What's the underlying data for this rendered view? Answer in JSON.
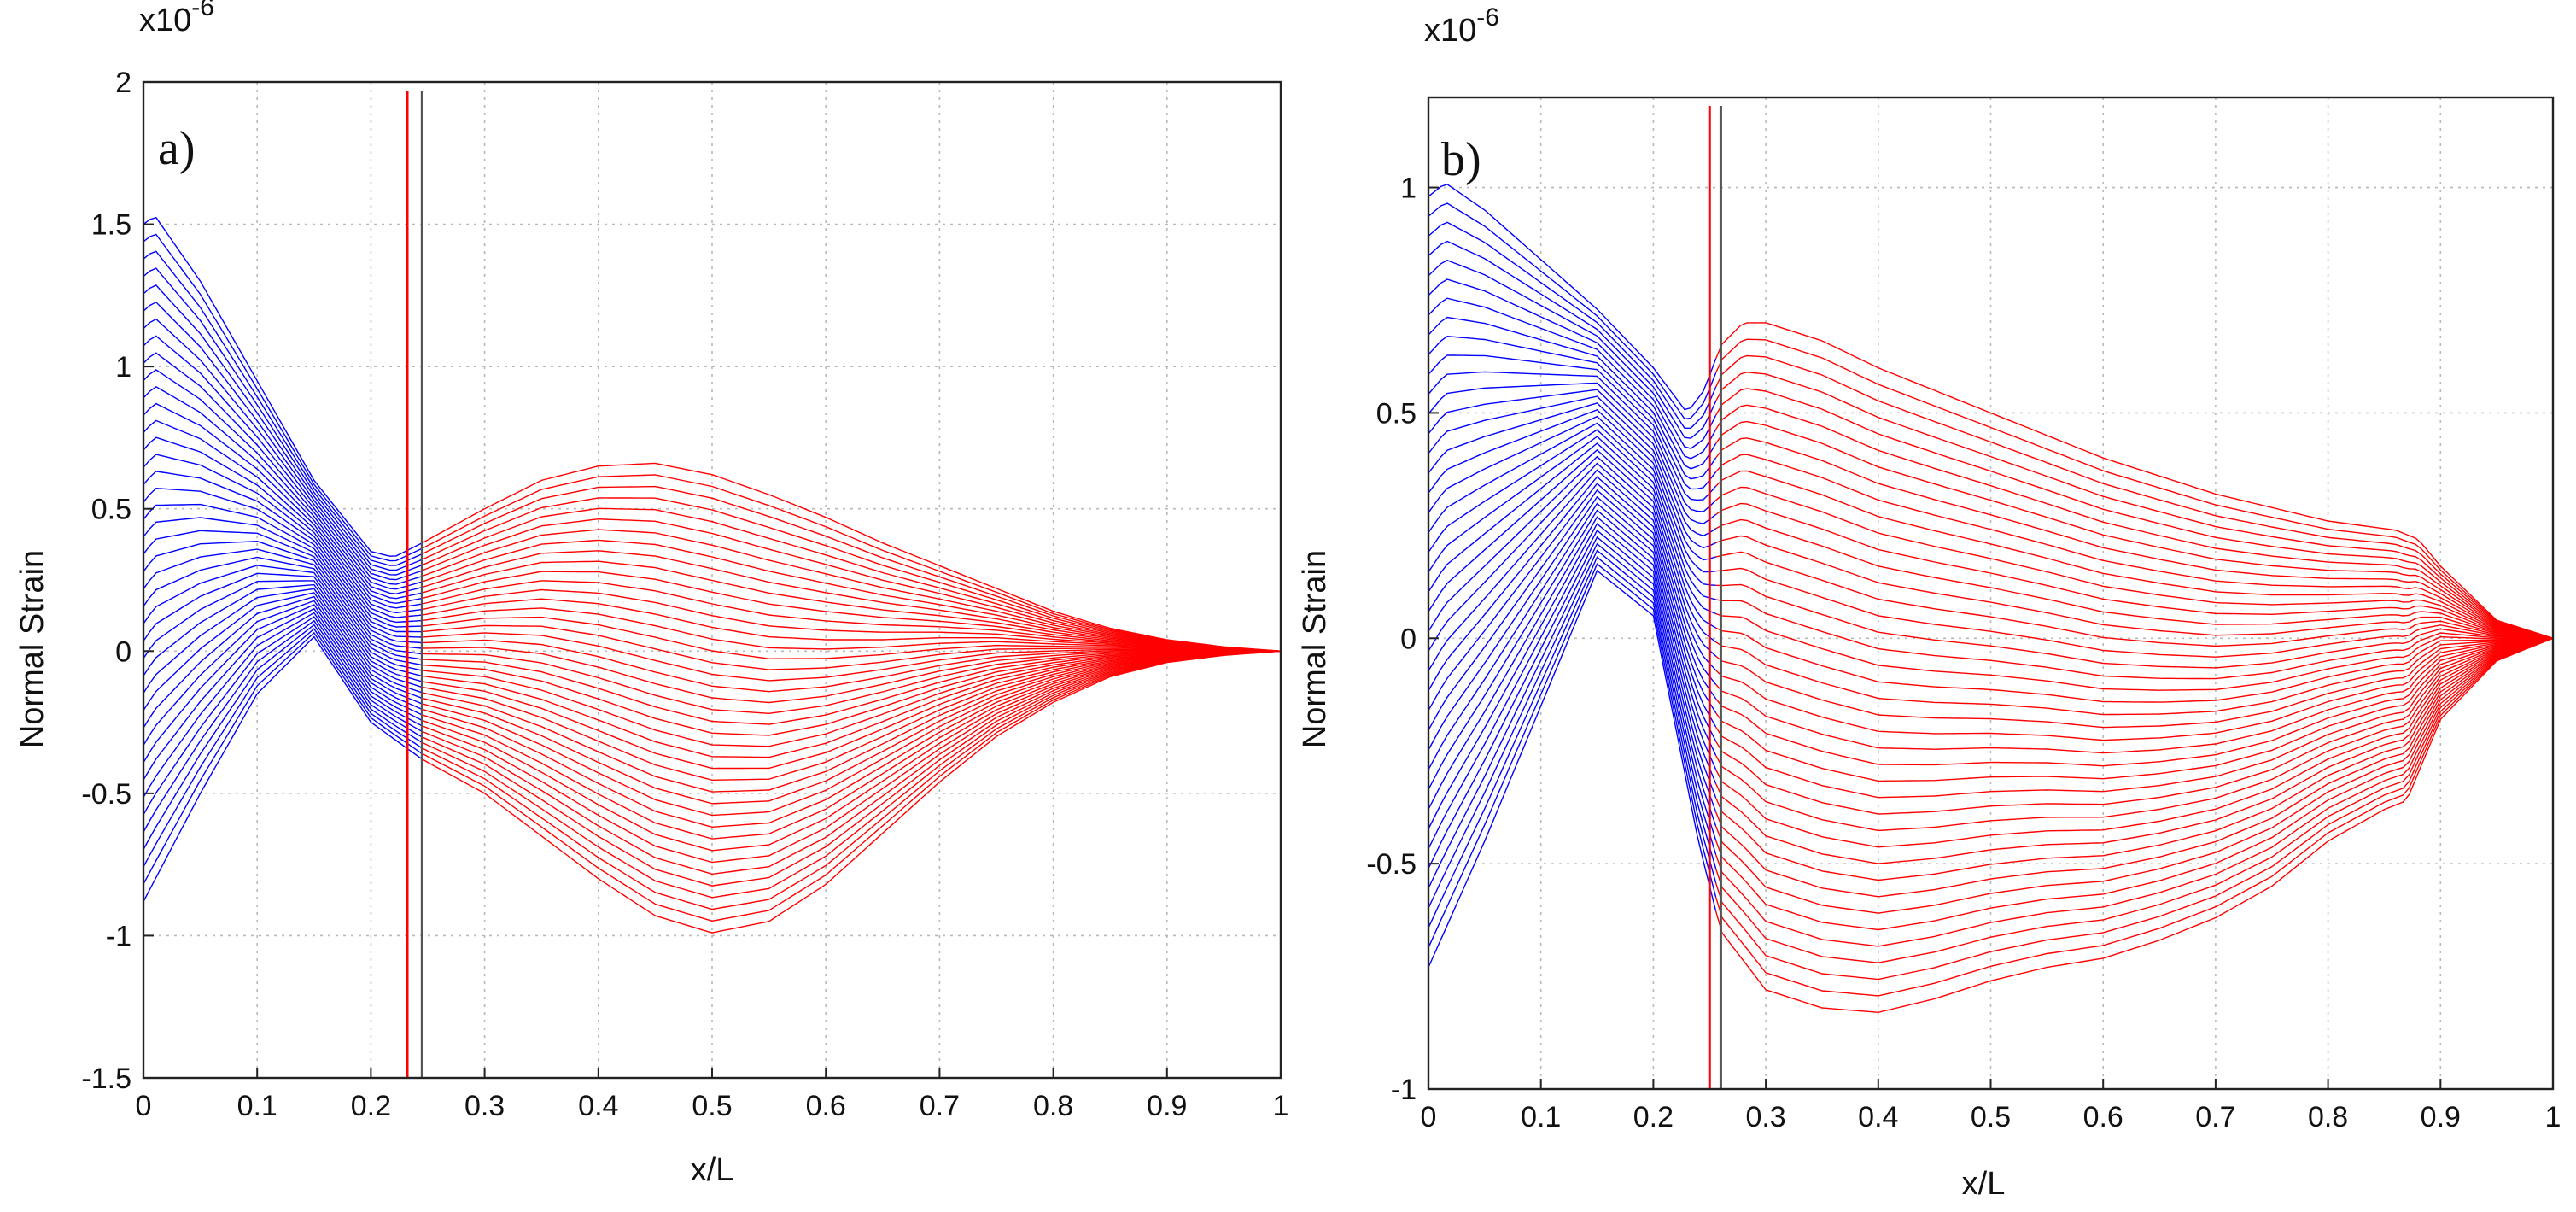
{
  "chart_data": [
    {
      "type": "line",
      "panel_label": "a)",
      "xlabel": "x/L",
      "ylabel": "Normal Strain",
      "y_multiplier": "x10",
      "y_multiplier_exp": "-6",
      "xlim": [
        0,
        1
      ],
      "ylim": [
        -1.5,
        2
      ],
      "x_ticks": [
        "0",
        "0.1",
        "0.2",
        "0.3",
        "0.4",
        "0.5",
        "0.6",
        "0.7",
        "0.8",
        "0.9",
        "1"
      ],
      "y_ticks": [
        "-1.5",
        "-1",
        "-0.5",
        "0",
        "0.5",
        "1",
        "1.5",
        "2"
      ],
      "x_tick_values": [
        0,
        0.1,
        0.2,
        0.3,
        0.4,
        0.5,
        0.6,
        0.7,
        0.8,
        0.9,
        1
      ],
      "y_tick_values": [
        -1.5,
        -1,
        -0.5,
        0,
        0.5,
        1,
        1.5,
        2
      ],
      "grid": true,
      "family": {
        "count": 40,
        "split_x": 0.245,
        "colors": {
          "left": "#0000ff",
          "right": "#ff0000"
        },
        "envelope_upper": {
          "x": [
            0,
            0.01,
            0.05,
            0.1,
            0.15,
            0.2,
            0.22,
            0.245,
            0.3,
            0.35,
            0.4,
            0.45,
            0.5,
            0.55,
            0.6,
            0.65,
            0.7,
            0.75,
            0.8,
            0.85,
            0.9,
            0.95,
            1
          ],
          "y": [
            1.5,
            1.53,
            1.3,
            0.95,
            0.6,
            0.35,
            0.33,
            0.38,
            0.5,
            0.6,
            0.65,
            0.66,
            0.62,
            0.55,
            0.47,
            0.38,
            0.3,
            0.22,
            0.14,
            0.08,
            0.04,
            0.015,
            0
          ]
        },
        "envelope_lower": {
          "x": [
            0,
            0.05,
            0.1,
            0.15,
            0.2,
            0.245,
            0.3,
            0.35,
            0.4,
            0.45,
            0.5,
            0.55,
            0.6,
            0.65,
            0.7,
            0.75,
            0.8,
            0.85,
            0.9,
            0.95,
            1
          ],
          "y": [
            -0.88,
            -0.5,
            -0.15,
            0.05,
            -0.25,
            -0.38,
            -0.5,
            -0.65,
            -0.8,
            -0.93,
            -0.99,
            -0.95,
            -0.82,
            -0.64,
            -0.46,
            -0.3,
            -0.18,
            -0.09,
            -0.04,
            -0.015,
            0
          ]
        }
      },
      "vertical_lines": [
        {
          "x": 0.232,
          "color": "#ff0000"
        },
        {
          "x": 0.245,
          "color": "#555555"
        }
      ]
    },
    {
      "type": "line",
      "panel_label": "b)",
      "xlabel": "x/L",
      "ylabel": "Normal Strain",
      "y_multiplier": "x10",
      "y_multiplier_exp": "-6",
      "xlim": [
        0,
        1
      ],
      "ylim": [
        -1,
        1.2
      ],
      "x_ticks": [
        "0",
        "0.1",
        "0.2",
        "0.3",
        "0.4",
        "0.5",
        "0.6",
        "0.7",
        "0.8",
        "0.9",
        "1"
      ],
      "y_ticks": [
        "-1",
        "-0.5",
        "0",
        "0.5",
        "1"
      ],
      "x_tick_values": [
        0,
        0.1,
        0.2,
        0.3,
        0.4,
        0.5,
        0.6,
        0.7,
        0.8,
        0.9,
        1
      ],
      "y_tick_values": [
        -1,
        -0.5,
        0,
        0.5,
        1
      ],
      "grid": true,
      "family": {
        "count": 40,
        "split_x": 0.26,
        "colors": {
          "left": "#0000ff",
          "right": "#ff0000"
        },
        "envelope_upper": {
          "x": [
            0,
            0.015,
            0.05,
            0.1,
            0.15,
            0.2,
            0.23,
            0.245,
            0.26,
            0.28,
            0.3,
            0.35,
            0.4,
            0.5,
            0.6,
            0.7,
            0.8,
            0.86,
            0.88,
            0.9,
            0.95,
            1
          ],
          "y": [
            0.98,
            1.01,
            0.95,
            0.84,
            0.73,
            0.6,
            0.5,
            0.55,
            0.65,
            0.7,
            0.7,
            0.66,
            0.6,
            0.5,
            0.4,
            0.32,
            0.26,
            0.24,
            0.22,
            0.16,
            0.04,
            0
          ]
        },
        "envelope_lower": {
          "x": [
            0,
            0.05,
            0.1,
            0.15,
            0.2,
            0.24,
            0.26,
            0.3,
            0.35,
            0.4,
            0.45,
            0.5,
            0.55,
            0.6,
            0.65,
            0.7,
            0.75,
            0.8,
            0.85,
            0.87,
            0.88,
            0.9,
            0.95,
            1
          ],
          "y": [
            -0.73,
            -0.45,
            -0.15,
            0.15,
            0.05,
            -0.45,
            -0.65,
            -0.78,
            -0.82,
            -0.83,
            -0.8,
            -0.76,
            -0.73,
            -0.71,
            -0.67,
            -0.62,
            -0.55,
            -0.45,
            -0.38,
            -0.36,
            -0.3,
            -0.18,
            -0.05,
            0
          ]
        }
      },
      "vertical_lines": [
        {
          "x": 0.25,
          "color": "#ff0000"
        },
        {
          "x": 0.26,
          "color": "#555555"
        }
      ]
    }
  ]
}
